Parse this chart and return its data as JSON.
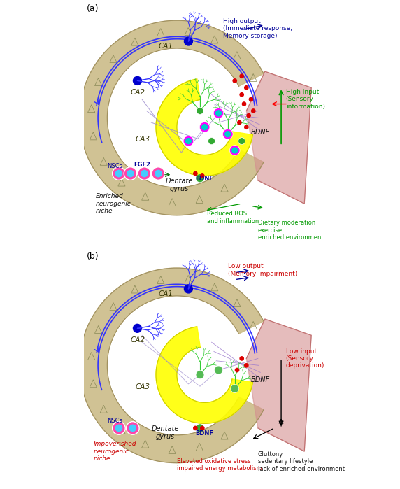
{
  "title_a": "(a)",
  "title_b": "(b)",
  "bg_color": "#ffffff",
  "hippocampus_fill": "#c8b882",
  "dentate_fill": "#ffff00",
  "dentate_stroke": "#cccc00",
  "cortex_fill": "#c8a0a0",
  "ca1_label": "CA1",
  "ca2_label": "CA2",
  "ca3_label": "CA3",
  "nsc_label": "NSCs",
  "fgf2_label": "FGF2",
  "dg_label": "Dentate\ngyrus",
  "bdnf_label_a": "BDNF",
  "bdnf_label_b": "BDNF",
  "high_output_label": "High output\n(Immediate response,\nMemory storage)",
  "low_output_label": "Low output\n(Memory impairment)",
  "high_input_label": "High Input\n(Sensory\ninformation)",
  "low_input_label": "Low input\n(Sensory\ndeprivation)",
  "reduced_ros_label": "Reduced ROS\nand inflammation",
  "dietary_label": "Dietary moderation\nexercise\nenriched environment",
  "enriched_label": "Enriched\nneurogenic\nniche",
  "impoverished_label": "Impoverished\nneurogenic\nniche",
  "elevated_label": "Elevated oxidative stress\nimpaired energy metabolism",
  "gluttony_label": "Gluttony\nsedentary lifestyle\nlack of enriched environment",
  "bdnf_dots_label": "BDNF",
  "neuron_blue": "#0000cc",
  "neuron_green": "#22aa22",
  "neuron_magenta": "#cc00cc",
  "neuron_cyan": "#00aaaa",
  "dendrite_blue": "#3333ff",
  "dendrite_green": "#33cc33",
  "cell_body_magenta": "#ff00ff",
  "cell_body_cyan": "#00cccc",
  "red_dots": "#dd0000",
  "green_dots": "#00aa00",
  "arrow_green": "#009900",
  "arrow_blue": "#000099",
  "arrow_black": "#000000",
  "arrow_red": "#cc0000",
  "text_green": "#009900",
  "text_red": "#cc0000",
  "text_blue": "#000099",
  "text_dark": "#111111"
}
